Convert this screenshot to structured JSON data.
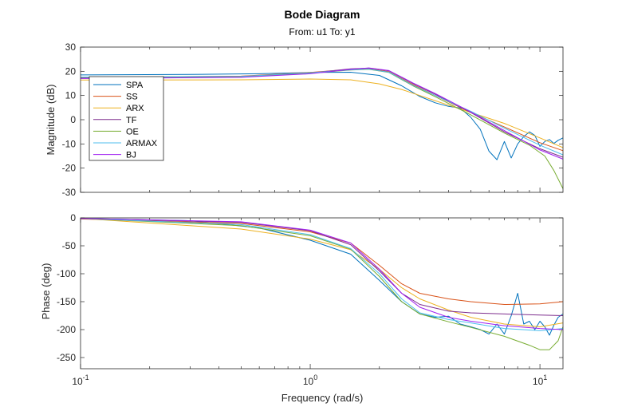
{
  "chart_data": {
    "type": "line",
    "title": "Bode Diagram",
    "subtitle": "From: u1  To: y1",
    "xlabel": "Frequency (rad/s)",
    "xscale": "log",
    "xlim": [
      0.1,
      12.6
    ],
    "xticks": [
      {
        "value": 0.1,
        "base": "10",
        "exp": "-1"
      },
      {
        "value": 1,
        "base": "10",
        "exp": "0"
      },
      {
        "value": 10,
        "base": "10",
        "exp": "1"
      }
    ],
    "magnitude": {
      "ylabel": "Magnitude (dB)",
      "ylim": [
        -30,
        30
      ],
      "yticks": [
        "30",
        "20",
        "10",
        "0",
        "-10",
        "-20",
        "-30"
      ],
      "legend_position": "upper-left",
      "series": [
        {
          "name": "SPA",
          "color": "#0072BD",
          "w": [
            0.1,
            0.3,
            0.6,
            1.0,
            1.5,
            2.0,
            2.5,
            3.0,
            3.5,
            4.0,
            4.5,
            5.0,
            5.5,
            6.0,
            6.5,
            7.0,
            7.5,
            8.0,
            8.5,
            9.0,
            9.5,
            10.0,
            10.5,
            11.0,
            11.5,
            12.0,
            12.6
          ],
          "v": [
            18.5,
            18.7,
            19.0,
            19.5,
            19.6,
            18.3,
            14.0,
            9.6,
            7.0,
            5.5,
            4.8,
            1.0,
            -4.0,
            -13.0,
            -16.5,
            -9.0,
            -15.8,
            -10.0,
            -7.0,
            -5.0,
            -6.5,
            -11.0,
            -9.0,
            -8.2,
            -9.8,
            -8.5,
            -7.5
          ]
        },
        {
          "name": "SS",
          "color": "#D95319",
          "w": [
            0.1,
            0.5,
            1.0,
            1.5,
            1.8,
            2.2,
            2.8,
            3.5,
            5.0,
            7.0,
            10.0,
            12.6
          ],
          "v": [
            17.5,
            18.0,
            19.5,
            20.8,
            21.0,
            19.8,
            14.5,
            10.0,
            3.0,
            -3.0,
            -9.5,
            -12.8
          ]
        },
        {
          "name": "ARX",
          "color": "#EDB120",
          "w": [
            0.1,
            0.5,
            1.0,
            1.5,
            2.0,
            2.5,
            3.0,
            4.0,
            5.0,
            7.0,
            10.0,
            12.6
          ],
          "v": [
            16.4,
            16.5,
            16.8,
            16.5,
            14.8,
            12.5,
            10.0,
            6.0,
            3.0,
            -1.5,
            -7.5,
            -11.5
          ]
        },
        {
          "name": "TF",
          "color": "#7E2F8E",
          "w": [
            0.1,
            0.5,
            1.0,
            1.5,
            1.8,
            2.2,
            2.8,
            3.5,
            5.0,
            7.0,
            10.0,
            12.6
          ],
          "v": [
            17.2,
            17.6,
            19.3,
            21.0,
            21.3,
            20.2,
            15.0,
            10.5,
            3.0,
            -5.0,
            -12.0,
            -15.5
          ]
        },
        {
          "name": "OE",
          "color": "#77AC30",
          "w": [
            0.1,
            0.5,
            1.0,
            1.5,
            1.8,
            2.2,
            2.8,
            3.5,
            5.0,
            7.0,
            9.0,
            10.5,
            11.5,
            12.6
          ],
          "v": [
            17.5,
            17.8,
            19.2,
            20.5,
            20.8,
            19.5,
            14.0,
            9.5,
            2.0,
            -5.5,
            -10.5,
            -15.0,
            -21.0,
            -28.5
          ]
        },
        {
          "name": "ARMAX",
          "color": "#4DBEEE",
          "w": [
            0.1,
            0.5,
            1.0,
            1.5,
            1.8,
            2.2,
            2.8,
            3.5,
            5.0,
            7.0,
            10.0,
            12.6
          ],
          "v": [
            17.6,
            17.9,
            19.4,
            20.6,
            20.9,
            19.6,
            14.2,
            10.0,
            3.5,
            -3.5,
            -10.5,
            -14.5
          ]
        },
        {
          "name": "BJ",
          "color": "#A020F0",
          "w": [
            0.1,
            0.5,
            1.0,
            1.5,
            1.8,
            2.2,
            2.8,
            3.5,
            5.0,
            7.0,
            10.0,
            12.6
          ],
          "v": [
            17.0,
            17.5,
            19.0,
            20.8,
            21.4,
            20.3,
            15.2,
            10.8,
            3.2,
            -4.5,
            -12.5,
            -16.3
          ]
        }
      ]
    },
    "phase": {
      "ylabel": "Phase (deg)",
      "ylim": [
        -270,
        0
      ],
      "yticks": [
        "0",
        "-50",
        "-100",
        "-150",
        "-200",
        "-250"
      ],
      "series": [
        {
          "name": "SPA",
          "color": "#0072BD",
          "w": [
            0.1,
            0.3,
            0.6,
            1.0,
            1.5,
            2.0,
            2.5,
            3.0,
            3.5,
            4.0,
            4.5,
            5.0,
            5.5,
            6.0,
            6.5,
            7.0,
            7.5,
            8.0,
            8.5,
            9.0,
            9.5,
            10.0,
            10.5,
            11.0,
            11.5,
            12.0,
            12.6
          ],
          "v": [
            -1.0,
            -5.0,
            -18.0,
            -40.0,
            -65.0,
            -112.0,
            -150.0,
            -172.0,
            -178.0,
            -176.0,
            -190.0,
            -195.0,
            -200.0,
            -208.0,
            -190.0,
            -208.0,
            -175.0,
            -135.0,
            -190.0,
            -185.0,
            -200.0,
            -185.0,
            -195.0,
            -210.0,
            -192.0,
            -178.0,
            -172.0
          ]
        },
        {
          "name": "SS",
          "color": "#D95319",
          "w": [
            0.1,
            0.5,
            1.0,
            1.5,
            2.0,
            2.5,
            3.0,
            4.0,
            5.0,
            7.0,
            10.0,
            12.6
          ],
          "v": [
            -2.0,
            -10.0,
            -25.0,
            -45.0,
            -85.0,
            -118.0,
            -135.0,
            -145.0,
            -150.0,
            -155.0,
            -154.0,
            -150.0
          ]
        },
        {
          "name": "ARX",
          "color": "#EDB120",
          "w": [
            0.1,
            0.5,
            1.0,
            1.5,
            2.0,
            2.5,
            3.0,
            4.0,
            5.0,
            7.0,
            10.0,
            12.6
          ],
          "v": [
            -1.0,
            -20.0,
            -38.0,
            -57.0,
            -92.0,
            -125.0,
            -145.0,
            -165.0,
            -178.0,
            -190.0,
            -195.0,
            -188.0
          ]
        },
        {
          "name": "TF",
          "color": "#7E2F8E",
          "w": [
            0.1,
            0.5,
            1.0,
            1.5,
            2.0,
            2.5,
            3.0,
            4.0,
            5.0,
            7.0,
            10.0,
            12.6
          ],
          "v": [
            -1.0,
            -8.0,
            -23.0,
            -48.0,
            -95.0,
            -135.0,
            -155.0,
            -167.0,
            -170.0,
            -172.0,
            -174.0,
            -175.0
          ]
        },
        {
          "name": "OE",
          "color": "#77AC30",
          "w": [
            0.1,
            0.5,
            1.0,
            1.5,
            2.0,
            2.5,
            3.0,
            4.0,
            5.0,
            7.0,
            9.0,
            10.0,
            11.0,
            12.0,
            12.6
          ],
          "v": [
            -1.0,
            -14.0,
            -32.0,
            -56.0,
            -105.0,
            -150.0,
            -172.0,
            -186.0,
            -196.0,
            -212.0,
            -228.0,
            -236.0,
            -236.0,
            -220.0,
            -195.0
          ]
        },
        {
          "name": "ARMAX",
          "color": "#4DBEEE",
          "w": [
            0.1,
            0.5,
            1.0,
            1.5,
            2.0,
            2.5,
            3.0,
            4.0,
            5.0,
            7.0,
            10.0,
            12.6
          ],
          "v": [
            -1.0,
            -12.0,
            -30.0,
            -55.0,
            -100.0,
            -145.0,
            -170.0,
            -182.0,
            -188.0,
            -198.0,
            -202.0,
            -198.0
          ]
        },
        {
          "name": "BJ",
          "color": "#A020F0",
          "w": [
            0.1,
            0.5,
            1.0,
            1.5,
            2.0,
            2.5,
            3.0,
            4.0,
            5.0,
            7.0,
            10.0,
            12.6
          ],
          "v": [
            -1.0,
            -7.0,
            -22.0,
            -45.0,
            -92.0,
            -135.0,
            -160.0,
            -178.0,
            -185.0,
            -193.0,
            -198.0,
            -200.0
          ]
        }
      ]
    }
  }
}
